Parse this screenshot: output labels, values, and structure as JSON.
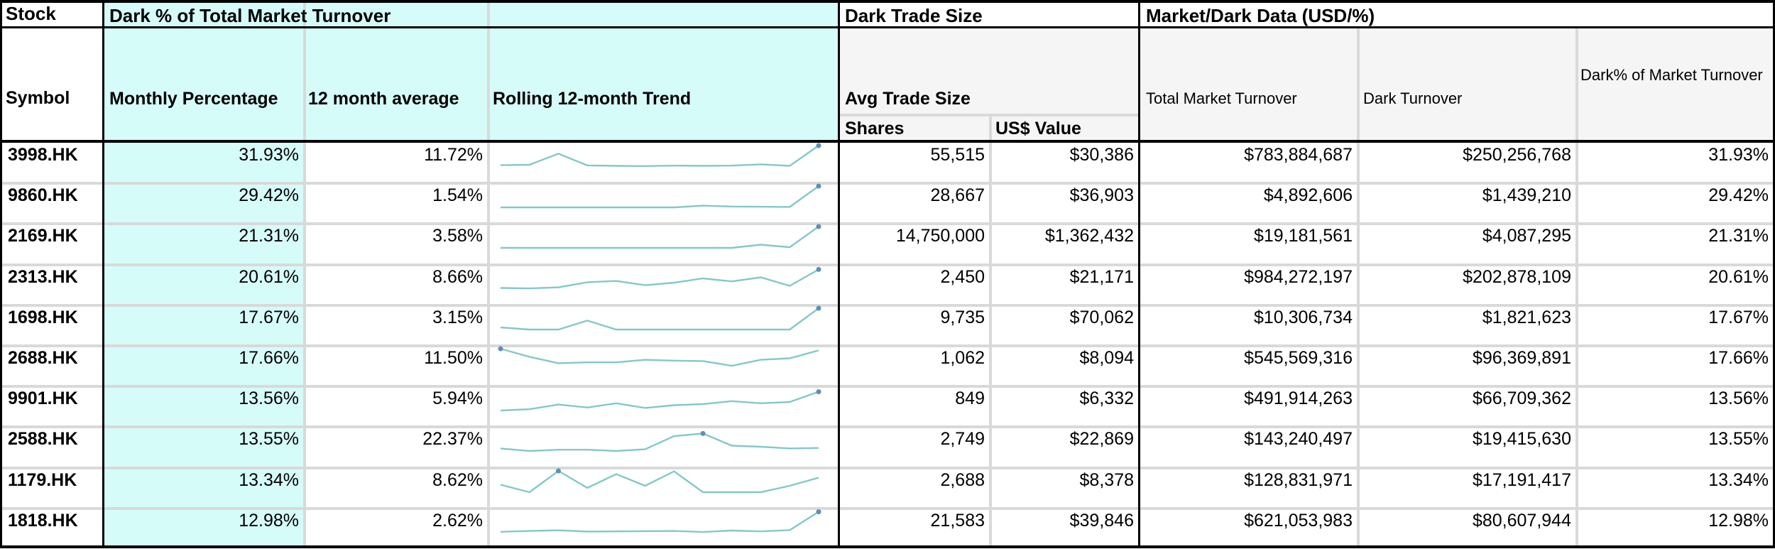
{
  "headers": {
    "stock": "Stock",
    "symbol": "Symbol",
    "dark_pct_group": "Dark % of Total Market Turnover",
    "monthly_percentage": "Monthly Percentage",
    "twelve_month_average": "12 month average",
    "rolling_trend": "Rolling 12-month Trend",
    "dark_trade_size_group": "Dark Trade Size",
    "avg_trade_size": "Avg Trade Size",
    "shares": "Shares",
    "usd_value": "US$ Value",
    "market_dark_group": "Market/Dark Data (USD/%)",
    "total_market_turnover": "Total Market Turnover",
    "dark_turnover": "Dark Turnover",
    "dark_pct_market_turnover": "Dark% of Market Turnover"
  },
  "colors": {
    "highlight_cyan": "#d6fcfa",
    "sparkline": "#84c8c8",
    "spark_marker": "#5d8fb8"
  },
  "rows": [
    {
      "symbol": "3998.HK",
      "monthly_pct": "31.93%",
      "avg_12m": "11.72%",
      "shares": "55,515",
      "usd_value": "$30,386",
      "total_turnover": "$783,884,687",
      "dark_turnover": "$250,256,768",
      "dark_pct": "31.93%",
      "trend": [
        0.08,
        0.1,
        0.62,
        0.07,
        0.05,
        0.04,
        0.06,
        0.05,
        0.06,
        0.12,
        0.05,
        1.0
      ],
      "trend_marker": 11
    },
    {
      "symbol": "9860.HK",
      "monthly_pct": "29.42%",
      "avg_12m": "1.54%",
      "shares": "28,667",
      "usd_value": "$36,903",
      "total_turnover": "$4,892,606",
      "dark_turnover": "$1,439,210",
      "dark_pct": "29.42%",
      "trend": [
        0.0,
        0.0,
        0.0,
        0.0,
        0.0,
        0.0,
        0.0,
        0.08,
        0.04,
        0.03,
        0.02,
        1.0
      ],
      "trend_marker": 11
    },
    {
      "symbol": "2169.HK",
      "monthly_pct": "21.31%",
      "avg_12m": "3.58%",
      "shares": "14,750,000",
      "usd_value": "$1,362,432",
      "total_turnover": "$19,181,561",
      "dark_turnover": "$4,087,295",
      "dark_pct": "21.31%",
      "trend": [
        0.0,
        0.0,
        0.0,
        0.0,
        0.0,
        0.0,
        0.0,
        0.0,
        0.0,
        0.15,
        0.03,
        1.0
      ],
      "trend_marker": 11
    },
    {
      "symbol": "2313.HK",
      "monthly_pct": "20.61%",
      "avg_12m": "8.66%",
      "shares": "2,450",
      "usd_value": "$21,171",
      "total_turnover": "$984,272,197",
      "dark_turnover": "$202,878,109",
      "dark_pct": "20.61%",
      "trend": [
        0.05,
        0.03,
        0.08,
        0.32,
        0.38,
        0.18,
        0.3,
        0.5,
        0.36,
        0.55,
        0.15,
        0.92
      ],
      "trend_marker": 11
    },
    {
      "symbol": "1698.HK",
      "monthly_pct": "17.67%",
      "avg_12m": "3.15%",
      "shares": "9,735",
      "usd_value": "$70,062",
      "total_turnover": "$10,306,734",
      "dark_turnover": "$1,821,623",
      "dark_pct": "17.67%",
      "trend": [
        0.1,
        0.0,
        0.0,
        0.42,
        0.0,
        0.0,
        0.0,
        0.0,
        0.0,
        0.0,
        0.0,
        1.0
      ],
      "trend_marker": 11
    },
    {
      "symbol": "2688.HK",
      "monthly_pct": "17.66%",
      "avg_12m": "11.50%",
      "shares": "1,062",
      "usd_value": "$8,094",
      "total_turnover": "$545,569,316",
      "dark_turnover": "$96,369,891",
      "dark_pct": "17.66%",
      "trend": [
        1.0,
        0.62,
        0.32,
        0.36,
        0.36,
        0.48,
        0.44,
        0.42,
        0.2,
        0.48,
        0.55,
        0.92
      ],
      "trend_marker": 0
    },
    {
      "symbol": "9901.HK",
      "monthly_pct": "13.56%",
      "avg_12m": "5.94%",
      "shares": "849",
      "usd_value": "$6,332",
      "total_turnover": "$491,914,263",
      "dark_turnover": "$66,709,362",
      "dark_pct": "13.56%",
      "trend": [
        0.0,
        0.06,
        0.28,
        0.14,
        0.34,
        0.12,
        0.25,
        0.3,
        0.44,
        0.34,
        0.4,
        0.88
      ],
      "trend_marker": 11
    },
    {
      "symbol": "2588.HK",
      "monthly_pct": "13.55%",
      "avg_12m": "22.37%",
      "shares": "2,749",
      "usd_value": "$22,869",
      "total_turnover": "$143,240,497",
      "dark_turnover": "$19,415,630",
      "dark_pct": "13.55%",
      "trend": [
        0.12,
        0.0,
        0.06,
        0.06,
        0.0,
        0.08,
        0.7,
        0.82,
        0.25,
        0.2,
        0.12,
        0.14
      ],
      "trend_marker": 7
    },
    {
      "symbol": "1179.HK",
      "monthly_pct": "13.34%",
      "avg_12m": "8.62%",
      "shares": "2,688",
      "usd_value": "$8,378",
      "total_turnover": "$128,831,971",
      "dark_turnover": "$17,191,417",
      "dark_pct": "13.34%",
      "trend": [
        0.35,
        0.0,
        1.0,
        0.2,
        0.85,
        0.3,
        0.98,
        0.0,
        0.0,
        0.0,
        0.3,
        0.68
      ],
      "trend_marker": 2
    },
    {
      "symbol": "1818.HK",
      "monthly_pct": "12.98%",
      "avg_12m": "2.62%",
      "shares": "21,583",
      "usd_value": "$39,846",
      "total_turnover": "$621,053,983",
      "dark_turnover": "$80,607,944",
      "dark_pct": "12.98%",
      "trend": [
        0.04,
        0.08,
        0.11,
        0.05,
        0.06,
        0.07,
        0.08,
        0.03,
        0.1,
        0.06,
        0.12,
        0.98
      ],
      "trend_marker": 11
    }
  ]
}
